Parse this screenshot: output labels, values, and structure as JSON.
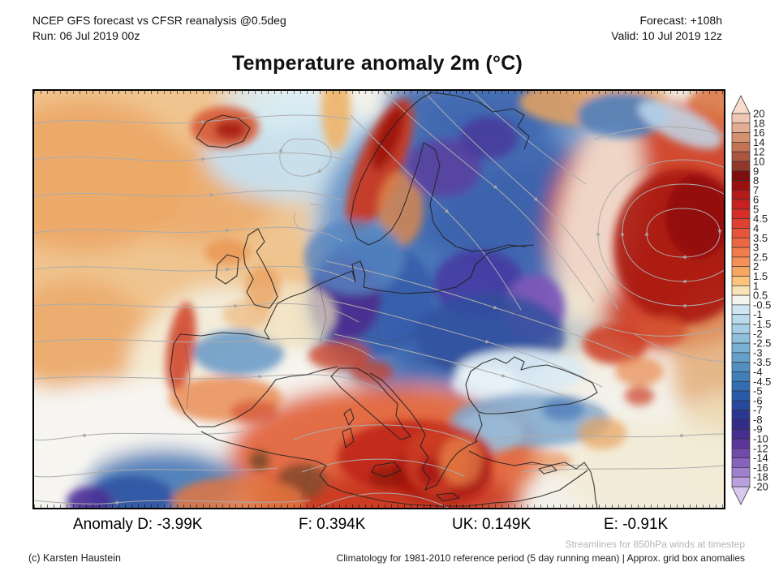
{
  "header": {
    "left_line1": "NCEP GFS forecast vs CFSR reanalysis @0.5deg",
    "left_line2": "Run: 06 Jul 2019 00z",
    "right_line1": "Forecast: +108h",
    "right_line2": "Valid: 10 Jul 2019 12z"
  },
  "title": "Temperature anomaly 2m (°C)",
  "anomaly": {
    "label_d": "Anomaly D: -3.99K",
    "label_f": "F: 0.394K",
    "label_uk": "UK: 0.149K",
    "label_e": "E: -0.91K"
  },
  "footer": {
    "credit": "(c) Karsten Haustein",
    "streamlines_note": "Streamlines for 850hPa winds at timestep",
    "climatology_note": "Climatology for 1981-2010 reference period (5 day running mean) | Approx. grid box anomalies"
  },
  "colorbar": {
    "units": "°C",
    "tick_labels": [
      "20",
      "18",
      "16",
      "14",
      "12",
      "10",
      "9",
      "8",
      "7",
      "6",
      "5",
      "4.5",
      "4",
      "3.5",
      "3",
      "2.5",
      "2",
      "1.5",
      "1",
      "0.5",
      "-0.5",
      "-1",
      "-1.5",
      "-2",
      "-2.5",
      "-3",
      "-3.5",
      "-4",
      "-4.5",
      "-5",
      "-6",
      "-7",
      "-8",
      "-9",
      "-10",
      "-12",
      "-14",
      "-16",
      "-18",
      "-20"
    ],
    "box_colors": [
      "#EFC6B2",
      "#E3AC93",
      "#D4916F",
      "#C37455",
      "#AC5640",
      "#92382B",
      "#7E0E0C",
      "#9A100F",
      "#B51A1B",
      "#C92121",
      "#D62F27",
      "#DF422E",
      "#E65439",
      "#EC6844",
      "#F17C4E",
      "#F59158",
      "#F8A763",
      "#FBC47E",
      "#F8E3B8",
      "#F5F4EE",
      "#CFE6F1",
      "#BBDAEB",
      "#A6CEE4",
      "#90BFDC",
      "#7AB0D4",
      "#64A0CB",
      "#5290C2",
      "#417FBA",
      "#326EB1",
      "#285AA8",
      "#28489E",
      "#2B3792",
      "#342C8B",
      "#462D90",
      "#5B3699",
      "#714AAC",
      "#8763BD",
      "#9E80CD",
      "#BAA1DE"
    ],
    "arrow_top_color": "#F7DCCE",
    "arrow_bottom_color": "#D7C9EC"
  }
}
